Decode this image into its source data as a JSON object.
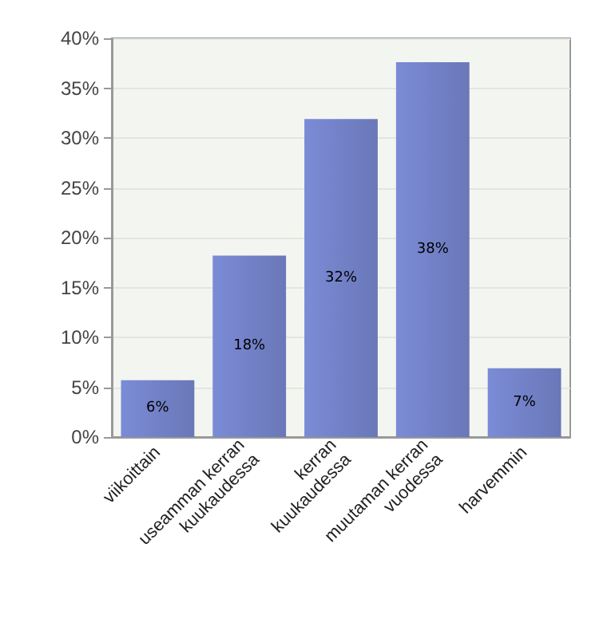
{
  "chart_data": {
    "type": "bar",
    "categories": [
      "viikoittain",
      "useamman kerran\nkuukaudessa",
      "kerran\nkuukaudessa",
      "muutaman kerran\nvuodessa",
      "harvemmin"
    ],
    "values": [
      5.7,
      18.2,
      31.9,
      37.6,
      6.9
    ],
    "value_labels": [
      "6%",
      "18%",
      "32%",
      "38%",
      "7%"
    ],
    "color": "#7b8bd6",
    "ylim": [
      0,
      40
    ],
    "yticks": [
      {
        "value": 0,
        "label": "0%"
      },
      {
        "value": 5,
        "label": "5%"
      },
      {
        "value": 10,
        "label": "10%"
      },
      {
        "value": 15,
        "label": "15%"
      },
      {
        "value": 20,
        "label": "20%"
      },
      {
        "value": 25,
        "label": "25%"
      },
      {
        "value": 30,
        "label": "30%"
      },
      {
        "value": 35,
        "label": "35%"
      },
      {
        "value": 40,
        "label": "40%"
      }
    ],
    "grid": "y"
  }
}
